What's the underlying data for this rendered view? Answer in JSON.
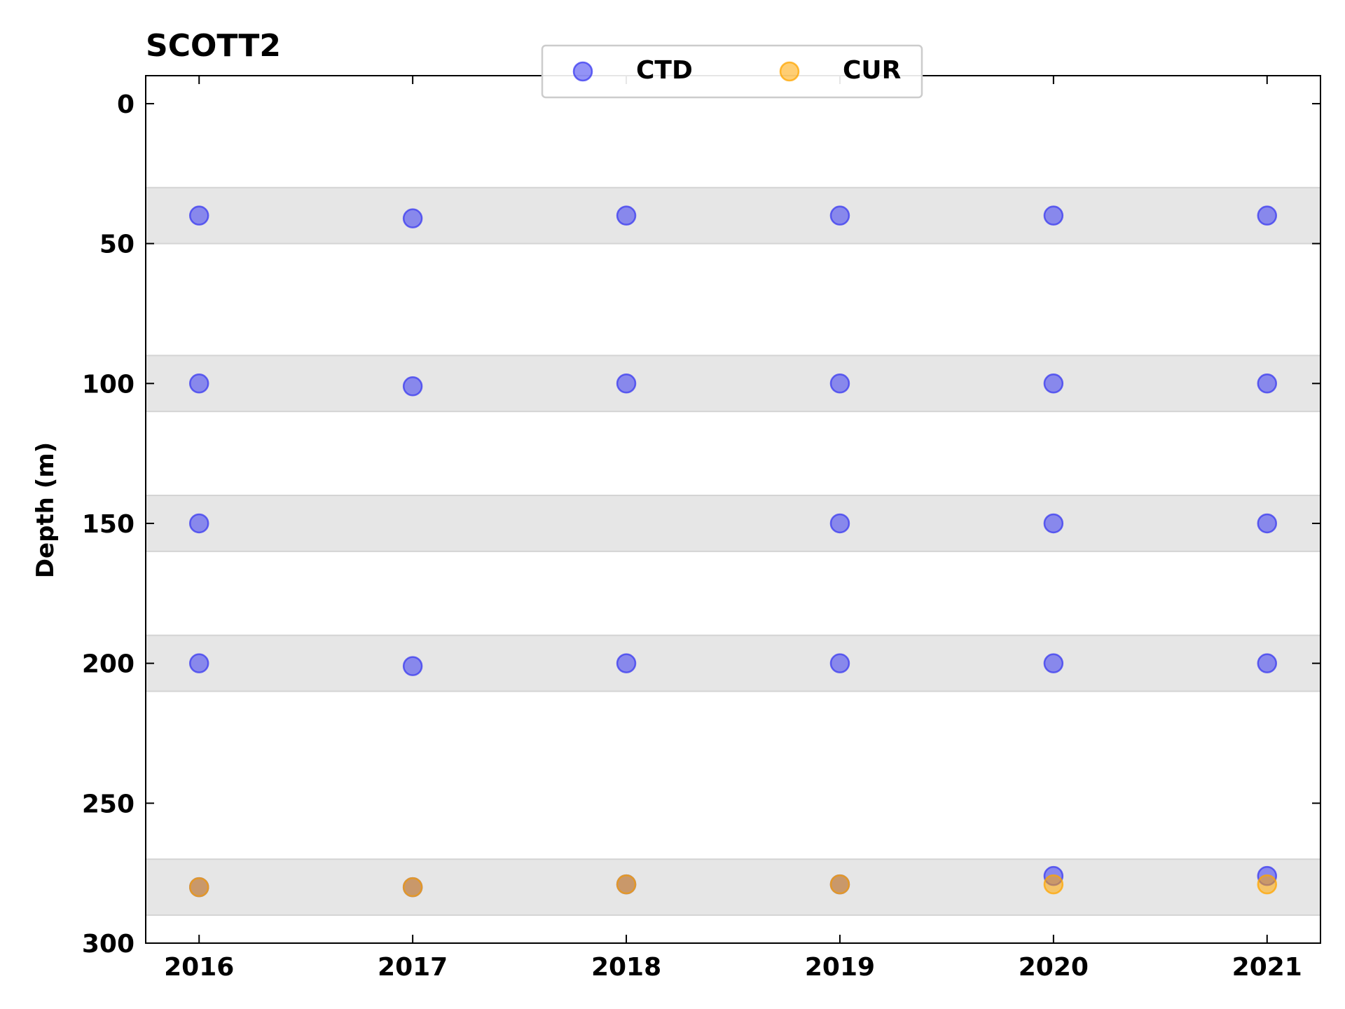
{
  "chart_data": {
    "type": "scatter",
    "title": "SCOTT2",
    "xlabel": "",
    "ylabel": "Depth (m)",
    "xlim": [
      2015.75,
      2021.25
    ],
    "ylim": [
      300,
      -10
    ],
    "y_inverted": true,
    "x_ticks": [
      2016,
      2017,
      2018,
      2019,
      2020,
      2021
    ],
    "x_tick_labels": [
      "2016",
      "2017",
      "2018",
      "2019",
      "2020",
      "2021"
    ],
    "y_ticks": [
      0,
      50,
      100,
      150,
      200,
      250,
      300
    ],
    "y_tick_labels": [
      "0",
      "50",
      "100",
      "150",
      "200",
      "250",
      "300"
    ],
    "grid": false,
    "legend": {
      "placement": "top-center",
      "entries": [
        "CTD",
        "CUR"
      ]
    },
    "bands": [
      [
        30,
        50
      ],
      [
        90,
        110
      ],
      [
        140,
        160
      ],
      [
        190,
        210
      ],
      [
        270,
        290
      ]
    ],
    "band_color": "#e6e6e6",
    "series": [
      {
        "name": "CTD",
        "color": "#3a3af0",
        "x": [
          2016,
          2016,
          2016,
          2016,
          2016,
          2017,
          2017,
          2017,
          2017,
          2018,
          2018,
          2018,
          2018,
          2019,
          2019,
          2019,
          2019,
          2019,
          2020,
          2020,
          2020,
          2020,
          2020,
          2021,
          2021,
          2021,
          2021,
          2021
        ],
        "y": [
          40,
          100,
          150,
          200,
          280,
          41,
          101,
          201,
          280,
          40,
          100,
          200,
          279,
          40,
          100,
          150,
          200,
          279,
          40,
          100,
          150,
          200,
          276,
          40,
          100,
          150,
          200,
          276
        ]
      },
      {
        "name": "CUR",
        "color": "#ffa500",
        "x": [
          2016,
          2017,
          2018,
          2019,
          2020,
          2021
        ],
        "y": [
          280,
          280,
          279,
          279,
          279,
          279
        ]
      }
    ]
  }
}
